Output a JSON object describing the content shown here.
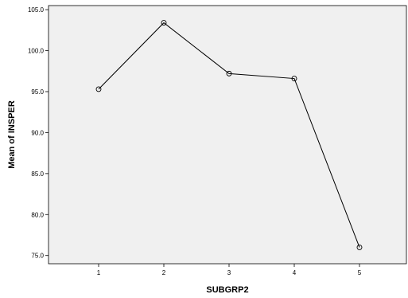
{
  "chart_data": {
    "type": "line",
    "title": "",
    "xlabel": "SUBGRP2",
    "ylabel": "Mean of INSPER",
    "x": [
      "1",
      "2",
      "3",
      "4",
      "5"
    ],
    "series": [
      {
        "values": [
          95.3,
          103.4,
          97.2,
          96.6,
          76.0
        ]
      }
    ],
    "ylim": [
      74.0,
      105.5
    ],
    "yticks": [
      75.0,
      80.0,
      85.0,
      90.0,
      95.0,
      100.0,
      105.0
    ],
    "ytick_labels": [
      "75.0",
      "80.0",
      "85.0",
      "90.0",
      "95.0",
      "100.0",
      "105.0"
    ],
    "grid": false,
    "legend": "none",
    "colors": {
      "plot_background": "#f0f0f0",
      "line": "#000000",
      "marker": "#000000"
    },
    "marker": "open-circle"
  }
}
